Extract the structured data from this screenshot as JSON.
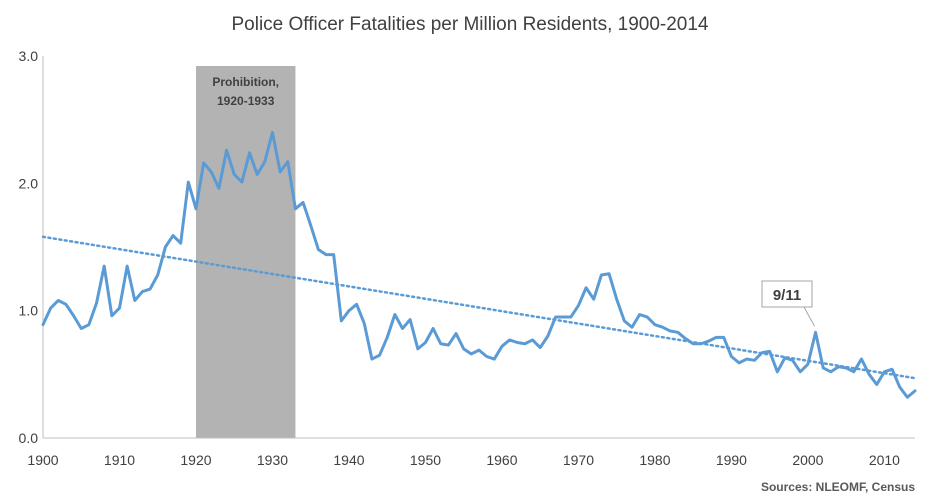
{
  "chart_data": {
    "type": "line",
    "title": "Police Officer Fatalities per Million Residents, 1900-2014",
    "xlabel": "",
    "ylabel": "",
    "xlim": [
      1900,
      2014
    ],
    "ylim": [
      0,
      3
    ],
    "x_ticks": [
      "1900",
      "1910",
      "1920",
      "1930",
      "1940",
      "1950",
      "1960",
      "1970",
      "1980",
      "1990",
      "2000",
      "2010"
    ],
    "y_ticks": [
      "0.0",
      "1.0",
      "2.0",
      "3.0"
    ],
    "grid": false,
    "legend": "none",
    "colors": {
      "line": "#5b9bd5",
      "trend": "#5b9bd5",
      "shade": "#b3b3b3",
      "axis": "#bfbfbf"
    },
    "x": [
      1900,
      1901,
      1902,
      1903,
      1904,
      1905,
      1906,
      1907,
      1908,
      1909,
      1910,
      1911,
      1912,
      1913,
      1914,
      1915,
      1916,
      1917,
      1918,
      1919,
      1920,
      1921,
      1922,
      1923,
      1924,
      1925,
      1926,
      1927,
      1928,
      1929,
      1930,
      1931,
      1932,
      1933,
      1934,
      1935,
      1936,
      1937,
      1938,
      1939,
      1940,
      1941,
      1942,
      1943,
      1944,
      1945,
      1946,
      1947,
      1948,
      1949,
      1950,
      1951,
      1952,
      1953,
      1954,
      1955,
      1956,
      1957,
      1958,
      1959,
      1960,
      1961,
      1962,
      1963,
      1964,
      1965,
      1966,
      1967,
      1968,
      1969,
      1970,
      1971,
      1972,
      1973,
      1974,
      1975,
      1976,
      1977,
      1978,
      1979,
      1980,
      1981,
      1982,
      1983,
      1984,
      1985,
      1986,
      1987,
      1988,
      1989,
      1990,
      1991,
      1992,
      1993,
      1994,
      1995,
      1996,
      1997,
      1998,
      1999,
      2000,
      2001,
      2002,
      2003,
      2004,
      2005,
      2006,
      2007,
      2008,
      2009,
      2010,
      2011,
      2012,
      2013,
      2014
    ],
    "series": [
      {
        "name": "",
        "values": [
          0.89,
          1.02,
          1.08,
          1.05,
          0.96,
          0.86,
          0.89,
          1.06,
          1.35,
          0.96,
          1.02,
          1.35,
          1.08,
          1.15,
          1.17,
          1.28,
          1.5,
          1.59,
          1.53,
          2.01,
          1.8,
          2.16,
          2.09,
          1.96,
          2.26,
          2.07,
          2.01,
          2.24,
          2.07,
          2.17,
          2.4,
          2.09,
          2.17,
          1.8,
          1.85,
          1.67,
          1.48,
          1.44,
          1.44,
          0.92,
          1.0,
          1.05,
          0.9,
          0.62,
          0.65,
          0.79,
          0.97,
          0.86,
          0.93,
          0.7,
          0.75,
          0.86,
          0.74,
          0.73,
          0.82,
          0.7,
          0.66,
          0.69,
          0.64,
          0.62,
          0.72,
          0.77,
          0.75,
          0.74,
          0.77,
          0.71,
          0.8,
          0.95,
          0.95,
          0.95,
          1.04,
          1.18,
          1.09,
          1.28,
          1.29,
          1.09,
          0.92,
          0.87,
          0.97,
          0.95,
          0.89,
          0.87,
          0.84,
          0.83,
          0.78,
          0.74,
          0.74,
          0.76,
          0.79,
          0.79,
          0.64,
          0.59,
          0.62,
          0.61,
          0.67,
          0.68,
          0.52,
          0.63,
          0.61,
          0.52,
          0.58,
          0.83,
          0.55,
          0.52,
          0.56,
          0.55,
          0.52,
          0.62,
          0.5,
          0.42,
          0.52,
          0.54,
          0.4,
          0.32,
          0.37
        ]
      }
    ],
    "trendline": {
      "style": "dotted",
      "from": [
        1900,
        1.58
      ],
      "to": [
        2014,
        0.47
      ]
    },
    "shaded_region": {
      "from": 1920,
      "to": 1933,
      "label_line1": "Prohibition,",
      "label_line2": "1920-1933"
    },
    "annotations": [
      {
        "text": "9/11",
        "x": 2001,
        "y": 0.83
      }
    ],
    "source": "Sources: NLEOMF, Census"
  }
}
